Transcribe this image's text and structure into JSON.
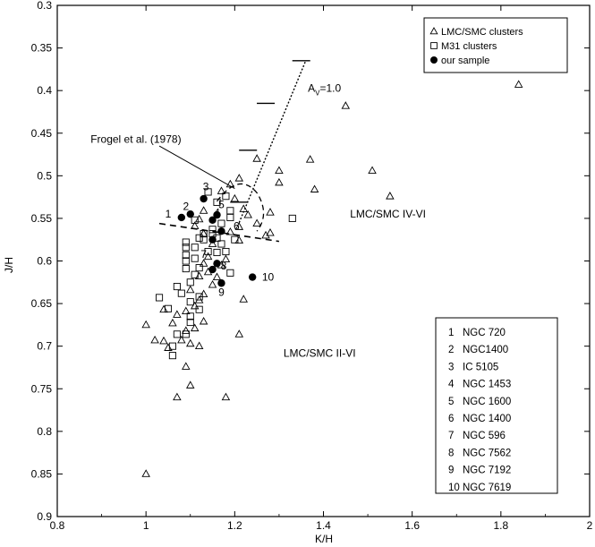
{
  "chart_data": {
    "type": "scatter",
    "title": "",
    "xlabel": "K/H",
    "ylabel": "J/H",
    "xlim": [
      0.8,
      2.0
    ],
    "ylim": [
      0.3,
      0.9
    ],
    "y_inverted": true,
    "grid": false,
    "x_tick_labels": [
      "0.8",
      "1",
      "1.2",
      "1.4",
      "1.6",
      "1.8",
      "2"
    ],
    "y_tick_labels": [
      "0.3",
      "0.35",
      "0.4",
      "0.45",
      "0.5",
      "0.55",
      "0.6",
      "0.65",
      "0.7",
      "0.75",
      "0.8",
      "0.85",
      "0.9"
    ],
    "legend": {
      "placement": "top-right",
      "entries": [
        {
          "marker": "triangle",
          "label": "LMC/SMC clusters"
        },
        {
          "marker": "square",
          "label": "M31 clusters"
        },
        {
          "marker": "filled-circle",
          "label": "our sample"
        }
      ]
    },
    "series": [
      {
        "marker": "triangle",
        "points": [
          [
            1.84,
            0.393
          ],
          [
            1.45,
            0.418
          ],
          [
            1.51,
            0.494
          ],
          [
            1.55,
            0.524
          ],
          [
            1.37,
            0.481
          ],
          [
            1.38,
            0.516
          ],
          [
            1.3,
            0.494
          ],
          [
            1.3,
            0.508
          ],
          [
            1.25,
            0.48
          ],
          [
            1.28,
            0.543
          ],
          [
            1.28,
            0.567
          ],
          [
            1.27,
            0.57
          ],
          [
            1.25,
            0.556
          ],
          [
            1.23,
            0.546
          ],
          [
            1.21,
            0.503
          ],
          [
            1.19,
            0.51
          ],
          [
            1.2,
            0.527
          ],
          [
            1.22,
            0.539
          ],
          [
            1.21,
            0.56
          ],
          [
            1.21,
            0.576
          ],
          [
            1.19,
            0.566
          ],
          [
            1.17,
            0.518
          ],
          [
            1.13,
            0.541
          ],
          [
            1.12,
            0.551
          ],
          [
            1.11,
            0.559
          ],
          [
            1.13,
            0.568
          ],
          [
            1.15,
            0.58
          ],
          [
            1.14,
            0.595
          ],
          [
            1.13,
            0.603
          ],
          [
            1.14,
            0.613
          ],
          [
            1.16,
            0.619
          ],
          [
            1.15,
            0.628
          ],
          [
            1.13,
            0.639
          ],
          [
            1.12,
            0.646
          ],
          [
            1.11,
            0.653
          ],
          [
            1.09,
            0.659
          ],
          [
            1.07,
            0.663
          ],
          [
            1.04,
            0.657
          ],
          [
            1.06,
            0.673
          ],
          [
            1.09,
            0.682
          ],
          [
            1.11,
            0.679
          ],
          [
            1.13,
            0.671
          ],
          [
            1.1,
            0.697
          ],
          [
            1.08,
            0.693
          ],
          [
            1.04,
            0.694
          ],
          [
            1.02,
            0.693
          ],
          [
            1.0,
            0.675
          ],
          [
            1.05,
            0.702
          ],
          [
            1.09,
            0.724
          ],
          [
            1.12,
            0.7
          ],
          [
            1.21,
            0.686
          ],
          [
            1.22,
            0.645
          ],
          [
            1.07,
            0.76
          ],
          [
            1.1,
            0.746
          ],
          [
            1.18,
            0.76
          ],
          [
            1.0,
            0.85
          ],
          [
            1.17,
            0.605
          ],
          [
            1.18,
            0.598
          ],
          [
            1.12,
            0.618
          ],
          [
            1.1,
            0.634
          ]
        ]
      },
      {
        "marker": "square",
        "points": [
          [
            1.14,
            0.519
          ],
          [
            1.18,
            0.524
          ],
          [
            1.16,
            0.531
          ],
          [
            1.19,
            0.541
          ],
          [
            1.19,
            0.549
          ],
          [
            1.17,
            0.556
          ],
          [
            1.15,
            0.563
          ],
          [
            1.13,
            0.568
          ],
          [
            1.12,
            0.573
          ],
          [
            1.09,
            0.578
          ],
          [
            1.09,
            0.584
          ],
          [
            1.09,
            0.593
          ],
          [
            1.09,
            0.6
          ],
          [
            1.11,
            0.584
          ],
          [
            1.11,
            0.597
          ],
          [
            1.12,
            0.608
          ],
          [
            1.11,
            0.616
          ],
          [
            1.09,
            0.609
          ],
          [
            1.1,
            0.625
          ],
          [
            1.08,
            0.638
          ],
          [
            1.1,
            0.648
          ],
          [
            1.12,
            0.642
          ],
          [
            1.12,
            0.657
          ],
          [
            1.1,
            0.665
          ],
          [
            1.1,
            0.672
          ],
          [
            1.09,
            0.686
          ],
          [
            1.07,
            0.686
          ],
          [
            1.06,
            0.7
          ],
          [
            1.06,
            0.711
          ],
          [
            1.03,
            0.643
          ],
          [
            1.05,
            0.656
          ],
          [
            1.07,
            0.63
          ],
          [
            1.15,
            0.568
          ],
          [
            1.16,
            0.573
          ],
          [
            1.17,
            0.58
          ],
          [
            1.18,
            0.589
          ],
          [
            1.19,
            0.614
          ],
          [
            1.16,
            0.59
          ],
          [
            1.33,
            0.55
          ],
          [
            1.11,
            0.552
          ],
          [
            1.13,
            0.575
          ],
          [
            1.14,
            0.589
          ],
          [
            1.2,
            0.575
          ]
        ]
      },
      {
        "marker": "filled-circle",
        "points": [
          [
            1.08,
            0.549
          ],
          [
            1.1,
            0.545
          ],
          [
            1.13,
            0.527
          ],
          [
            1.16,
            0.546
          ],
          [
            1.17,
            0.565
          ],
          [
            1.15,
            0.575
          ],
          [
            1.16,
            0.603
          ],
          [
            1.15,
            0.61
          ],
          [
            1.17,
            0.626
          ],
          [
            1.24,
            0.619
          ],
          [
            1.15,
            0.552
          ]
        ]
      }
    ],
    "point_labels": [
      {
        "text": "1",
        "x": 1.05,
        "y": 0.545
      },
      {
        "text": "2",
        "x": 1.09,
        "y": 0.536
      },
      {
        "text": "3",
        "x": 1.135,
        "y": 0.513
      },
      {
        "text": "4",
        "x": 1.16,
        "y": 0.543
      },
      {
        "text": "5",
        "x": 1.17,
        "y": 0.534
      },
      {
        "text": "6",
        "x": 1.204,
        "y": 0.559
      },
      {
        "text": "7",
        "x": 1.13,
        "y": 0.592
      },
      {
        "text": "8",
        "x": 1.175,
        "y": 0.606
      },
      {
        "text": "9",
        "x": 1.17,
        "y": 0.637
      },
      {
        "text": "10",
        "x": 1.275,
        "y": 0.619
      }
    ],
    "annotations": [
      {
        "text": "A",
        "subscript": "V",
        "suffix": "=1.0",
        "x": 1.365,
        "y": 0.397
      },
      {
        "text": "Frogel et al. (1978)",
        "x": 0.875,
        "y": 0.457
      },
      {
        "text": "LMC/SMC IV-VI",
        "x": 1.46,
        "y": 0.545
      },
      {
        "text": "LMC/SMC II-VI",
        "x": 1.31,
        "y": 0.708
      }
    ],
    "reddening_vector": {
      "from": [
        1.21,
        0.555
      ],
      "to": [
        1.36,
        0.365
      ],
      "ticks": [
        [
          1.21,
          0.531
        ],
        [
          1.23,
          0.47
        ],
        [
          1.27,
          0.415
        ],
        [
          1.35,
          0.365
        ]
      ]
    },
    "key": [
      "1  NGC 720",
      "2  NGC1400",
      "3  IC 5105",
      "4  NGC 1453",
      "5  NGC 1600",
      "6  NGC 1400",
      "7  NGC 596",
      "8  NGC 7562",
      "9  NGC 7192",
      "10  NGC 7619"
    ]
  }
}
